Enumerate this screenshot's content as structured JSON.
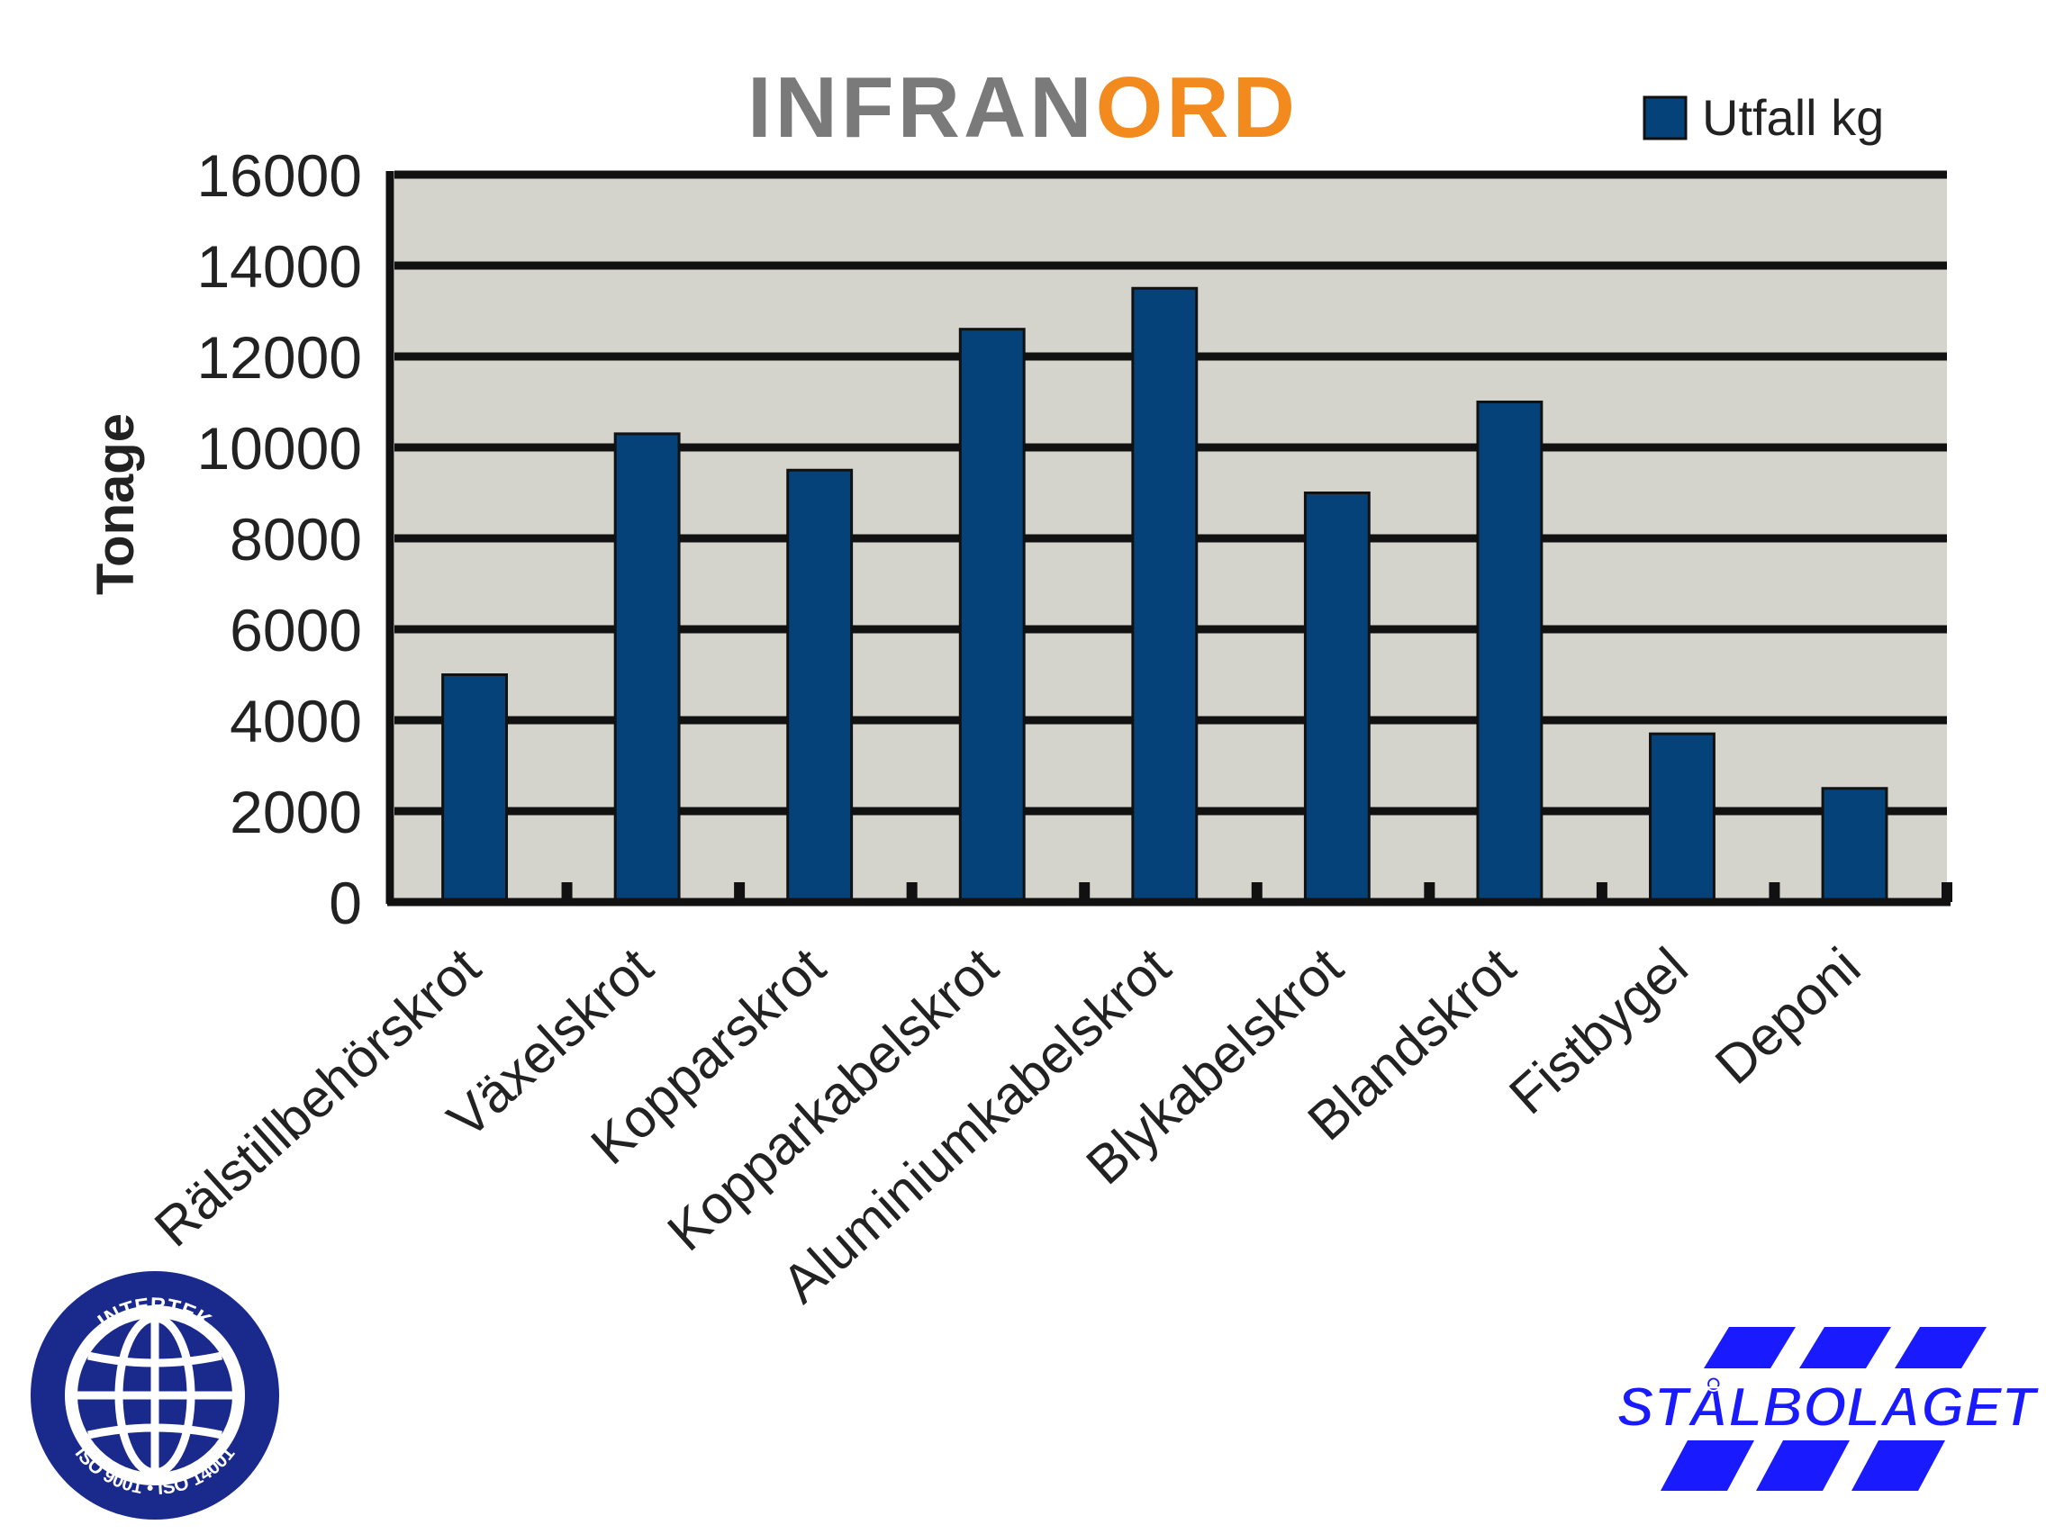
{
  "brand": {
    "part1": "INFRAN",
    "part2": "O",
    "part3": "RD",
    "color_gray": "#7a7a7a",
    "color_orange": "#f28a1e"
  },
  "chart_data": {
    "type": "bar",
    "categories": [
      "Rälstillbehörskrot",
      "Växelskrot",
      "Kopparskrot",
      "Kopparkabelskrot",
      "Aluminiumkabelskrot",
      "Blykabelskrot",
      "Blandskrot",
      "Fistbygel",
      "Deponi"
    ],
    "series": [
      {
        "name": "Utfall kg",
        "color": "#06427a",
        "values": [
          5000,
          10300,
          9500,
          12600,
          13500,
          9000,
          11000,
          3700,
          2500
        ]
      }
    ],
    "ylabel": "Tonage",
    "xlabel": "",
    "ylim": [
      0,
      16000
    ],
    "yticks": [
      0,
      2000,
      4000,
      6000,
      8000,
      10000,
      12000,
      14000,
      16000
    ],
    "grid": true,
    "legend_position": "top-right",
    "plot_background": "#d4d4cc"
  },
  "logos": {
    "intertek": {
      "top_text": "INTERTEK",
      "bottom_text": "ISO 9001 • ISO 14001",
      "color": "#1a2a8c"
    },
    "stalbolaget": {
      "text": "STÅLBOLAGET",
      "color": "#1a1aff"
    }
  }
}
